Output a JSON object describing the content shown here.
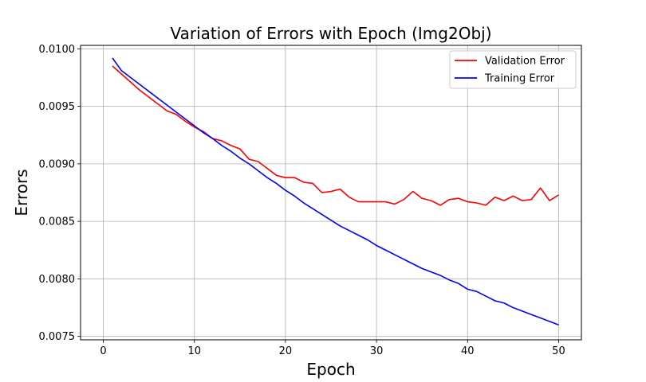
{
  "chart_data": {
    "type": "line",
    "title": "Variation of Errors with Epoch (Img2Obj)",
    "xlabel": "Epoch",
    "ylabel": "Errors",
    "xlim": [
      -2.5,
      52.5
    ],
    "ylim": [
      0.00747,
      0.01003
    ],
    "xticks": [
      0,
      10,
      20,
      30,
      40,
      50
    ],
    "yticks": [
      0.0075,
      0.008,
      0.0085,
      0.009,
      0.0095,
      0.01
    ],
    "ytick_labels": [
      "0.0075",
      "0.0080",
      "0.0085",
      "0.0090",
      "0.0095",
      "0.0100"
    ],
    "grid": true,
    "legend_position": "top-right",
    "x": [
      1,
      2,
      3,
      4,
      5,
      6,
      7,
      8,
      9,
      10,
      11,
      12,
      13,
      14,
      15,
      16,
      17,
      18,
      19,
      20,
      21,
      22,
      23,
      24,
      25,
      26,
      27,
      28,
      29,
      30,
      31,
      32,
      33,
      34,
      35,
      36,
      37,
      38,
      39,
      40,
      41,
      42,
      43,
      44,
      45,
      46,
      47,
      48,
      49,
      50
    ],
    "series": [
      {
        "name": "Validation Error",
        "color": "#ff0000",
        "values": [
          0.00985,
          0.00978,
          0.00971,
          0.00964,
          0.00958,
          0.00952,
          0.00946,
          0.00943,
          0.00937,
          0.00932,
          0.00928,
          0.00922,
          0.0092,
          0.00916,
          0.00913,
          0.00904,
          0.00902,
          0.00896,
          0.0089,
          0.00888,
          0.00888,
          0.00884,
          0.00883,
          0.00875,
          0.00876,
          0.00878,
          0.00871,
          0.00867,
          0.00867,
          0.00867,
          0.00867,
          0.00865,
          0.00869,
          0.00876,
          0.0087,
          0.00868,
          0.00864,
          0.00869,
          0.0087,
          0.00867,
          0.00866,
          0.00864,
          0.00871,
          0.00868,
          0.00872,
          0.00868,
          0.00869,
          0.00879,
          0.00868,
          0.00873
        ]
      },
      {
        "name": "Training Error",
        "color": "#0000ff",
        "values": [
          0.00992,
          0.00981,
          0.00975,
          0.00969,
          0.00963,
          0.00957,
          0.00951,
          0.00945,
          0.00939,
          0.00933,
          0.00927,
          0.00922,
          0.00916,
          0.00911,
          0.00905,
          0.009,
          0.00894,
          0.00888,
          0.00883,
          0.00877,
          0.00872,
          0.00866,
          0.00861,
          0.00856,
          0.00851,
          0.00846,
          0.00842,
          0.00838,
          0.00834,
          0.00829,
          0.00825,
          0.00821,
          0.00817,
          0.00813,
          0.00809,
          0.00806,
          0.00803,
          0.00799,
          0.00796,
          0.00791,
          0.00789,
          0.00785,
          0.00781,
          0.00779,
          0.00775,
          0.00772,
          0.00769,
          0.00766,
          0.00763,
          0.0076
        ]
      }
    ]
  }
}
